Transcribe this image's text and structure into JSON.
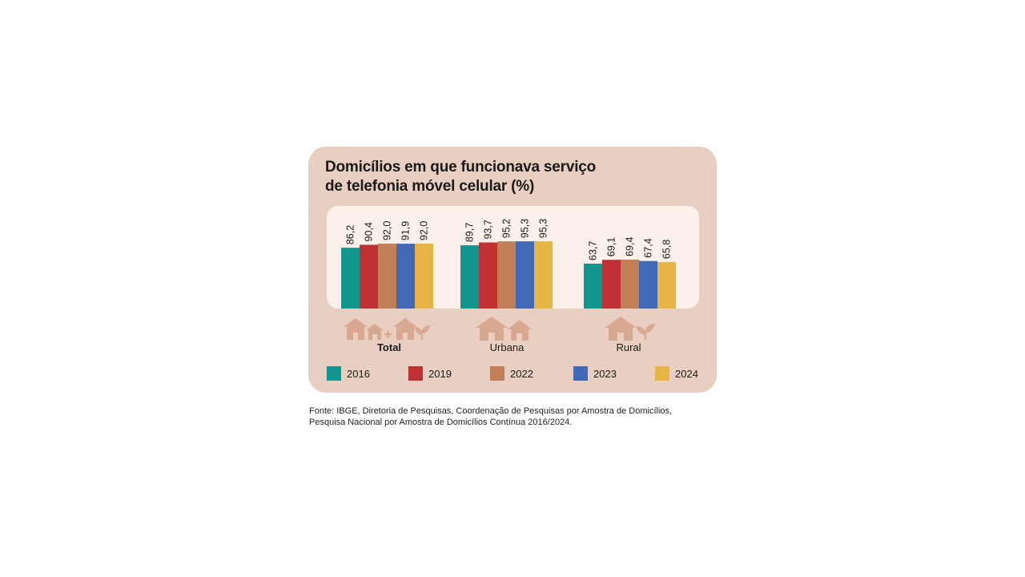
{
  "title_lines": [
    "Domicílios em que funcionava serviço",
    "de telefonia móvel celular (%)"
  ],
  "source_lines": [
    "Fonte: IBGE, Diretoria de Pesquisas, Coordenação de Pesquisas por Amostra de Domicílios,",
    "Pesquisa Nacional por Amostra de Domicílios Contínua 2016/2024."
  ],
  "category_icons": [
    "houses-plus-rural-icon",
    "urban-houses-icon",
    "rural-house-icon"
  ],
  "chart_data": {
    "type": "bar",
    "title": "Domicílios em que funcionava serviço de telefonia móvel celular (%)",
    "categories": [
      "Total",
      "Urbana",
      "Rural"
    ],
    "series": [
      {
        "name": "2016",
        "color": "#12958e",
        "values": [
          86.2,
          89.7,
          63.7
        ],
        "labels": [
          "86,2",
          "89,7",
          "63,7"
        ]
      },
      {
        "name": "2019",
        "color": "#bf3033",
        "values": [
          90.4,
          93.7,
          69.1
        ],
        "labels": [
          "90,4",
          "93,7",
          "69,1"
        ]
      },
      {
        "name": "2022",
        "color": "#c07f56",
        "values": [
          92.0,
          95.2,
          69.4
        ],
        "labels": [
          "92,0",
          "95,2",
          "69,4"
        ]
      },
      {
        "name": "2023",
        "color": "#4169b6",
        "values": [
          91.9,
          95.3,
          67.4
        ],
        "labels": [
          "91,9",
          "95,3",
          "67,4"
        ]
      },
      {
        "name": "2024",
        "color": "#e6b545",
        "values": [
          92.0,
          95.3,
          65.8
        ],
        "labels": [
          "92,0",
          "95,3",
          "65,8"
        ]
      }
    ],
    "ylim": [
      0,
      100
    ],
    "grid": false,
    "legend_position": "bottom"
  }
}
